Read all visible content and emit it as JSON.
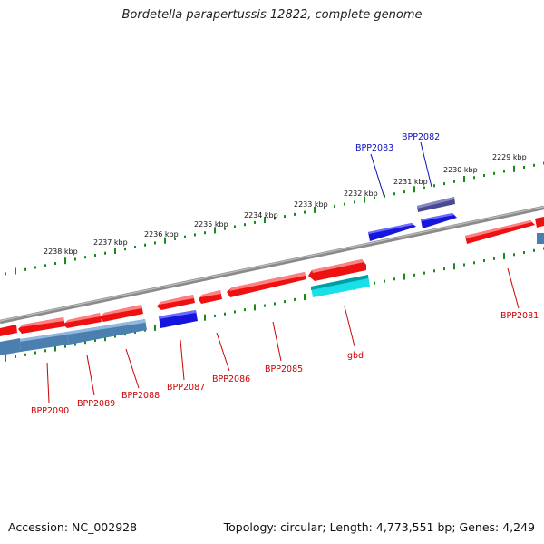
{
  "header": {
    "title": "Bordetella parapertussis 12822, complete genome"
  },
  "footer": {
    "accession": "Accession: NC_002928",
    "summary": "Topology: circular; Length: 4,773,551 bp; Genes: 4,249"
  },
  "colors": {
    "forward_gene": "#ee1111",
    "reverse_gene": "#ee1111",
    "cds_blue": "#1515dd",
    "cds_steel": "#4a7fb0",
    "cds_cyan": "#19e0e8",
    "cds_slate": "#4a4a90",
    "backbone": "#888888",
    "tick": "#1a8a1a",
    "label_red": "#cc0000",
    "label_blue": "#1111bb"
  },
  "scale_labels": [
    "2229 kbp",
    "2230 kbp",
    "2231 kbp",
    "2232 kbp",
    "2233 kbp",
    "2234 kbp",
    "2235 kbp",
    "2236 kbp",
    "2237 kbp",
    "2238 kbp"
  ],
  "gene_labels": [
    "BPP2081",
    "BPP2082",
    "BPP2083",
    "BPP2085",
    "BPP2086",
    "BPP2087",
    "BPP2088",
    "BPP2089",
    "BPP2090",
    "gbd"
  ]
}
